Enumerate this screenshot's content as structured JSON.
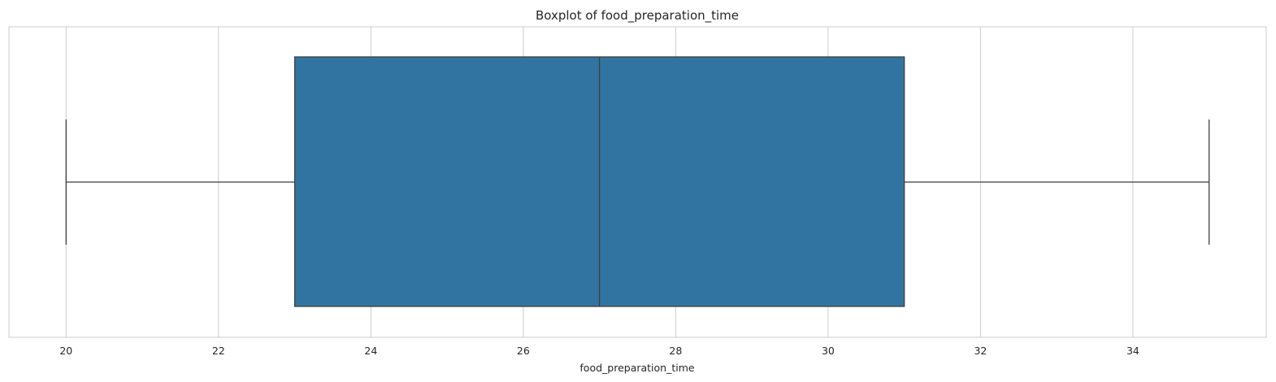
{
  "chart_data": {
    "type": "boxplot",
    "title": "Boxplot of food_preparation_time",
    "xlabel": "food_preparation_time",
    "ylabel": "",
    "orientation": "horizontal",
    "xlim": [
      19.25,
      35.75
    ],
    "x_ticks": [
      20,
      22,
      24,
      26,
      28,
      30,
      32,
      34
    ],
    "grid": "vertical",
    "box": {
      "whisker_low": 20,
      "q1": 23,
      "median": 27,
      "q3": 31,
      "whisker_high": 35
    },
    "colors": {
      "box_fill": "#3274a1",
      "line": "#3f3f3f",
      "grid": "#cccccc",
      "frame": "#cccccc",
      "text": "#262626"
    }
  }
}
